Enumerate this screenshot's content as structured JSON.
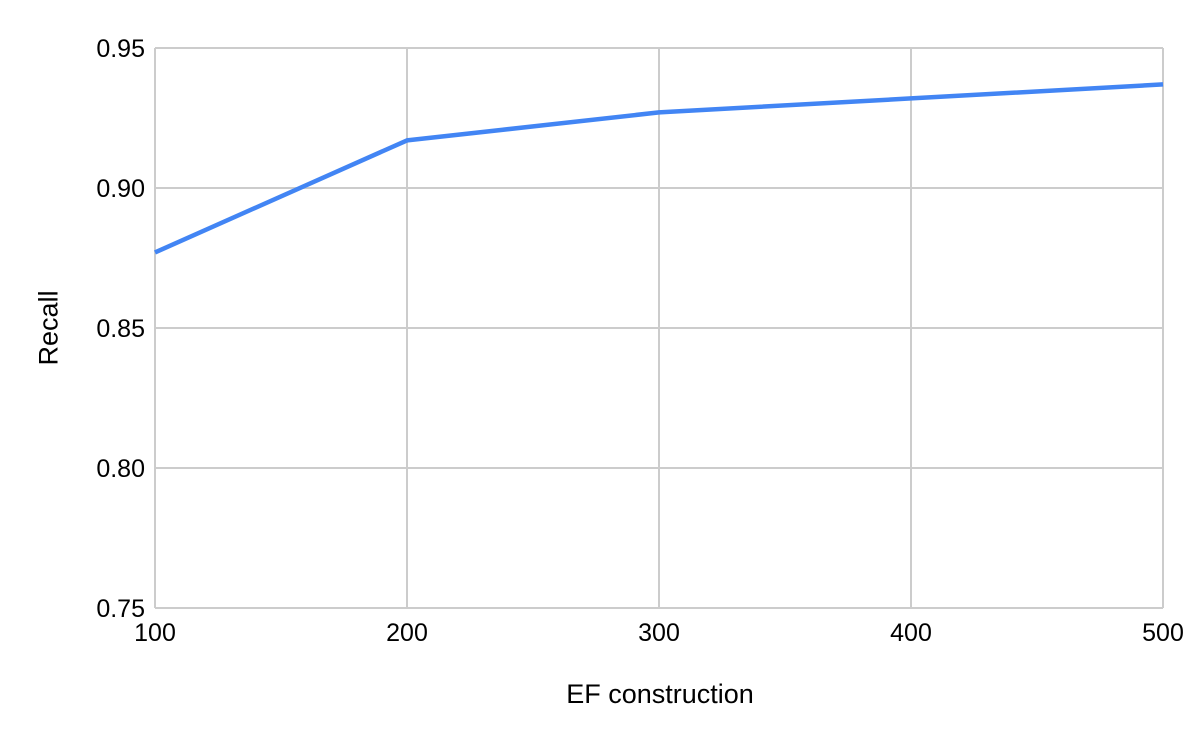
{
  "chart": {
    "background_color": "#ffffff",
    "gridline_color": "#cccccc",
    "text_color": "#000000",
    "series_color": "#4285f4",
    "line_width": 4.5
  },
  "chart_data": {
    "type": "line",
    "title": "",
    "xlabel": "EF construction",
    "ylabel": "Recall",
    "x": [
      100,
      200,
      300,
      400,
      500
    ],
    "series": [
      {
        "name": "Recall",
        "color": "#4285f4",
        "values": [
          0.877,
          0.917,
          0.927,
          0.932,
          0.937
        ]
      }
    ],
    "xlim": [
      100,
      500
    ],
    "ylim": [
      0.75,
      0.95
    ],
    "x_ticks": [
      100,
      200,
      300,
      400,
      500
    ],
    "x_tick_labels": [
      "100",
      "200",
      "300",
      "400",
      "500"
    ],
    "y_ticks": [
      0.75,
      0.8,
      0.85,
      0.9,
      0.95
    ],
    "y_tick_labels": [
      "0.75",
      "0.80",
      "0.85",
      "0.90",
      "0.95"
    ],
    "grid": true,
    "legend_position": "none"
  }
}
